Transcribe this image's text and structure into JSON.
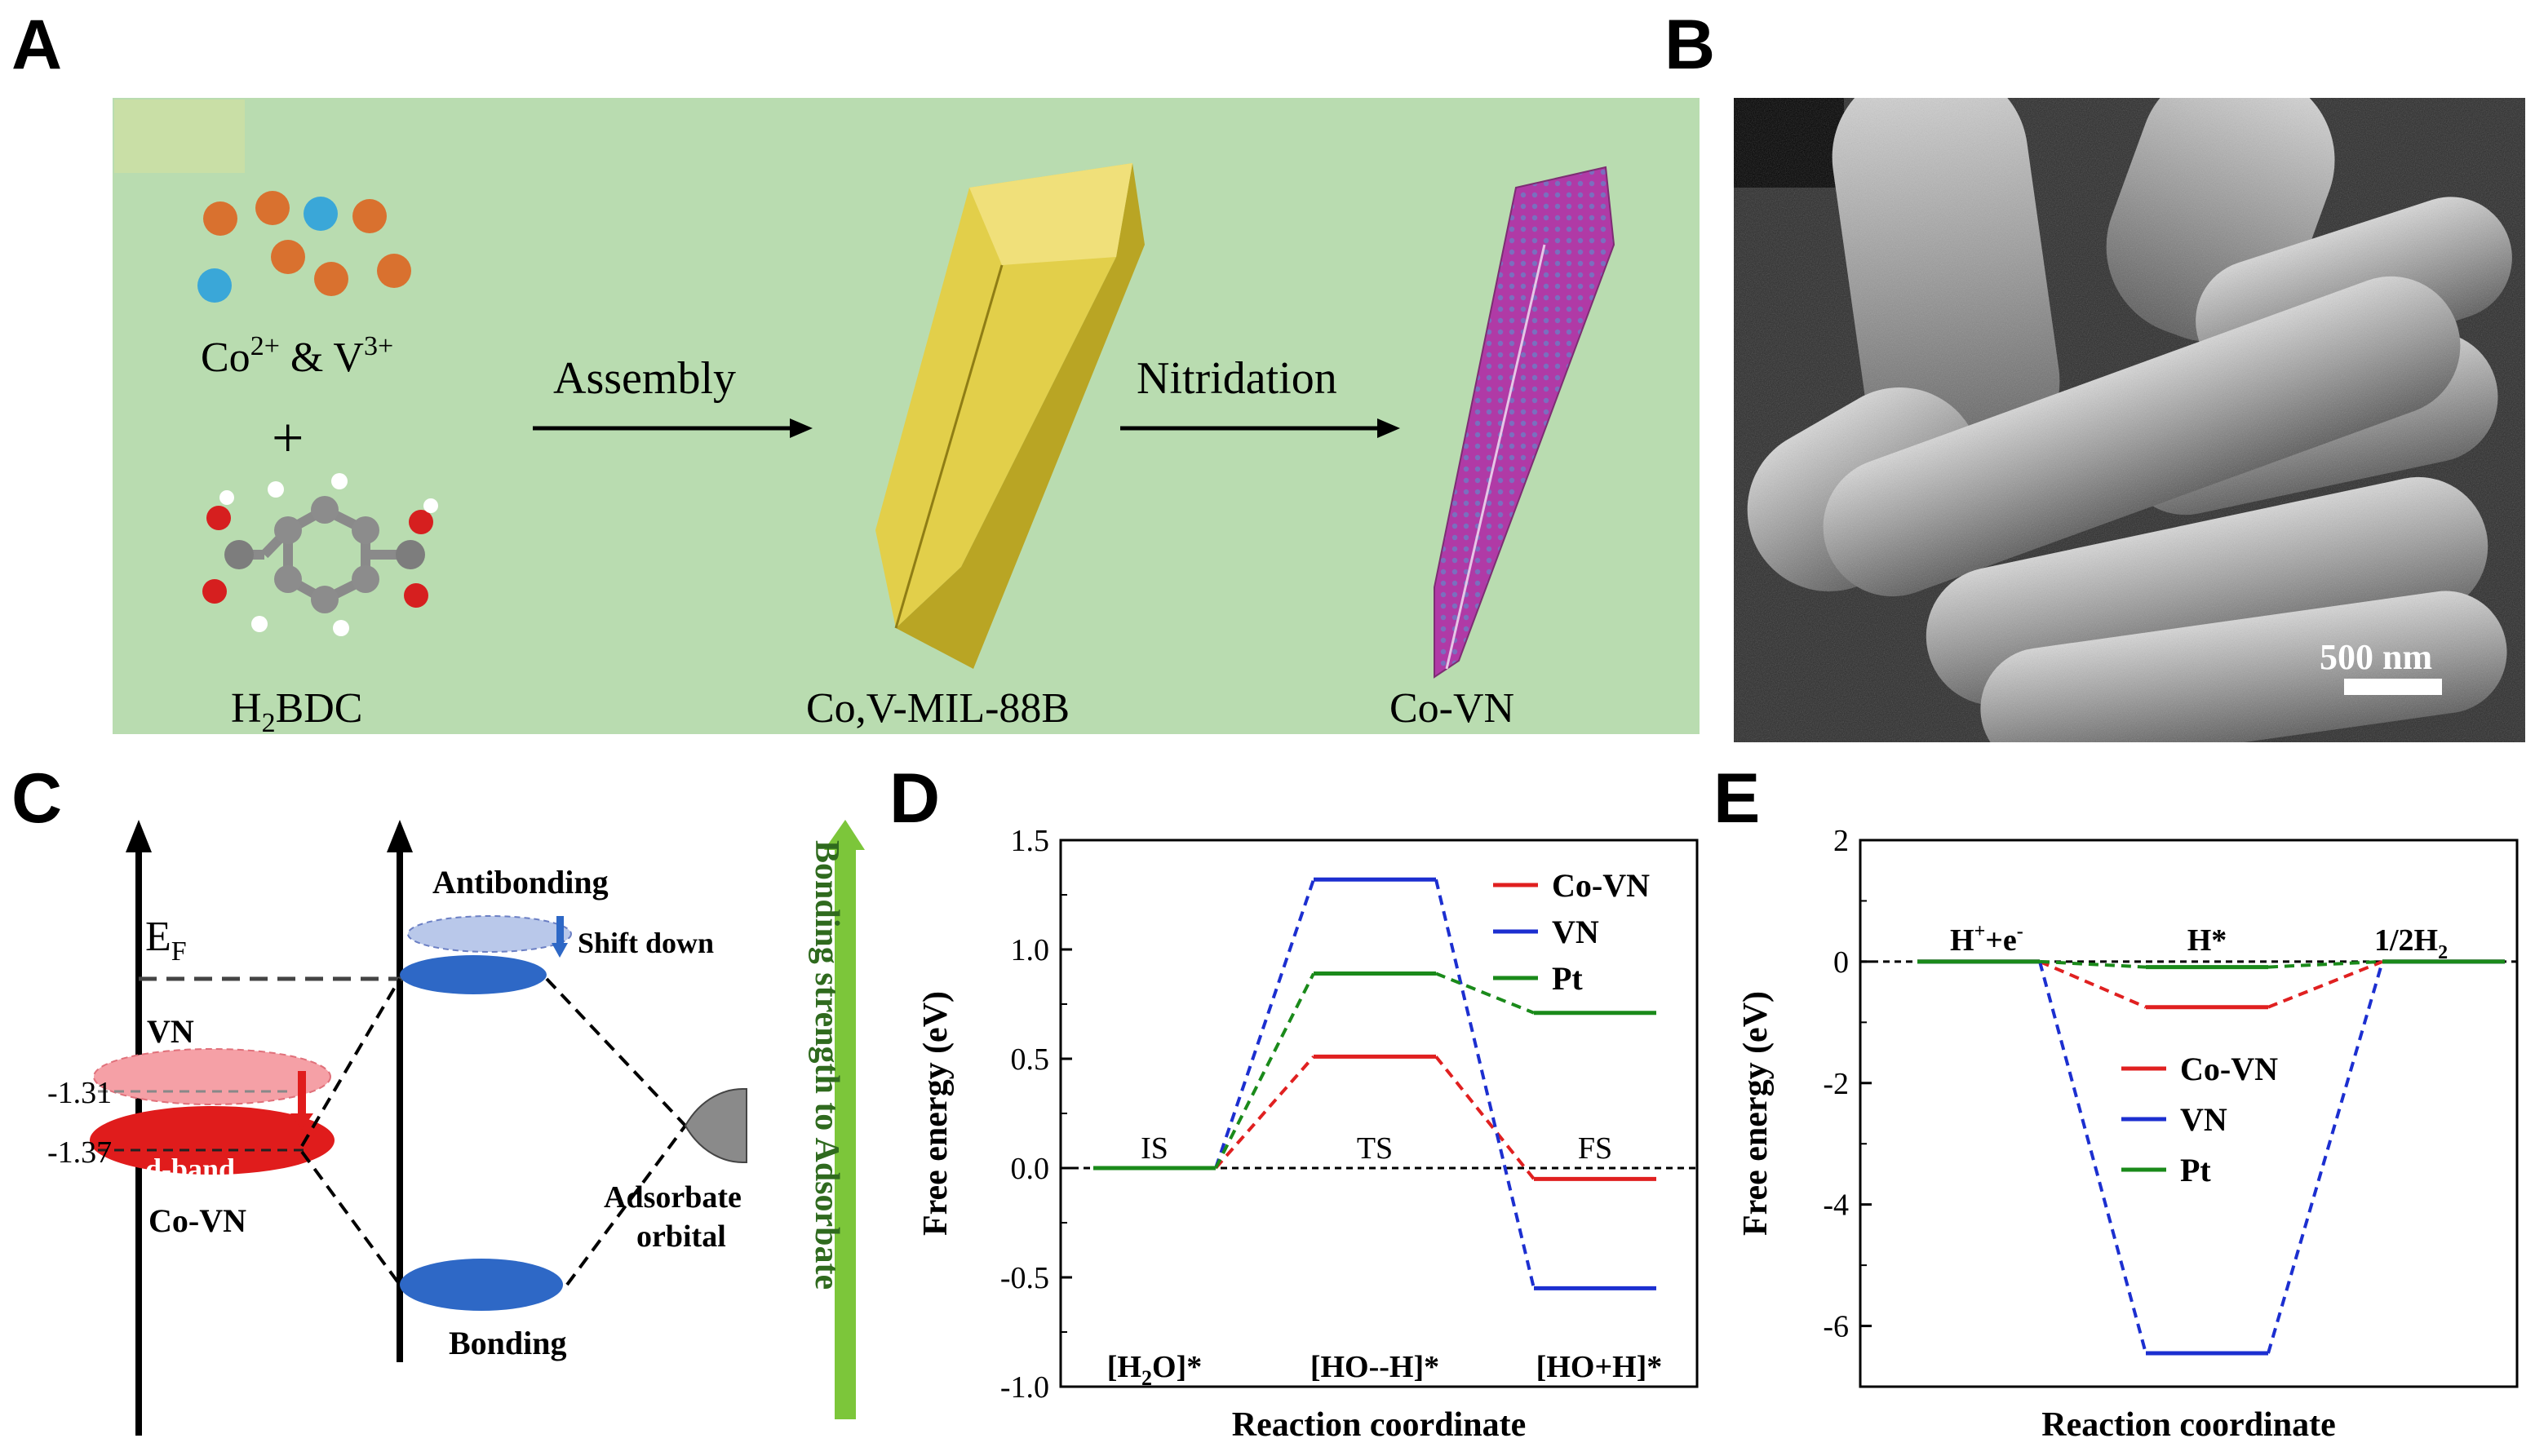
{
  "panels": {
    "a": {
      "letter": "A",
      "ions_label_base": "Co",
      "ions_label_sup1": "2+",
      "ions_label_mid": " & V",
      "ions_label_sup2": "3+",
      "plus": "+",
      "linker_base": "H",
      "linker_sub": "2",
      "linker_rest": "BDC",
      "step1": "Assembly",
      "step2": "Nitridation",
      "intermediate": "Co,V-MIL-88B",
      "product": "Co-VN",
      "colors": {
        "background": "#b9dcb0",
        "co_ion": "#d9712f",
        "v_ion": "#3aa7d8",
        "mof": "#d8c43b",
        "nitride": "#b03aa6"
      }
    },
    "b": {
      "letter": "B",
      "scale_bar": "500 nm"
    },
    "c": {
      "letter": "C",
      "ef_base": "E",
      "ef_sub": "F",
      "vn_label": "VN",
      "val1": "-1.31",
      "val2": "-1.37",
      "dband": "d-band",
      "covn_label": "Co-VN",
      "antibonding": "Antibonding",
      "shift_down": "Shift down",
      "bonding": "Bonding",
      "adsorbate1": "Adsorbate",
      "adsorbate2": "orbital",
      "strength": "Bonding strength to Adsorbate"
    },
    "d": {
      "letter": "D",
      "ylabel": "Free energy (eV)",
      "xlabel": "Reaction coordinate",
      "yticks": [
        "1.5",
        "1.0",
        "0.5",
        "0.0",
        "-0.5",
        "-1.0"
      ],
      "state_top": [
        "IS",
        "TS",
        "FS"
      ],
      "state_bottom_1": [
        "[H",
        "2",
        "O]*"
      ],
      "state_bottom_2": "[HO--H]*",
      "state_bottom_3": "[HO+H]*",
      "legend": [
        "Co-VN",
        "VN",
        "Pt"
      ]
    },
    "e": {
      "letter": "E",
      "ylabel": "Free energy (eV)",
      "xlabel": "Reaction coordinate",
      "yticks": [
        "2",
        "0",
        "-2",
        "-4",
        "-6"
      ],
      "state1": [
        "H",
        "+",
        "+e",
        "-"
      ],
      "state2": "H*",
      "state3": [
        "1/2H",
        "2"
      ],
      "legend": [
        "Co-VN",
        "VN",
        "Pt"
      ]
    }
  },
  "chart_data": [
    {
      "type": "line",
      "panel": "D",
      "xlabel": "Reaction coordinate",
      "ylabel": "Free energy (eV)",
      "ylim": [
        -1.0,
        1.5
      ],
      "categories": [
        "IS",
        "TS",
        "FS"
      ],
      "series": [
        {
          "name": "Co-VN",
          "color": "#e02020",
          "values": [
            0.0,
            0.51,
            -0.05
          ]
        },
        {
          "name": "VN",
          "color": "#1c2fd0",
          "values": [
            0.0,
            1.32,
            -0.55
          ]
        },
        {
          "name": "Pt",
          "color": "#1a8a1a",
          "values": [
            0.0,
            0.89,
            0.71
          ]
        }
      ]
    },
    {
      "type": "line",
      "panel": "E",
      "xlabel": "Reaction coordinate",
      "ylabel": "Free energy (eV)",
      "ylim": [
        -7,
        2
      ],
      "categories": [
        "H++e-",
        "H*",
        "1/2H2"
      ],
      "series": [
        {
          "name": "Co-VN",
          "color": "#e02020",
          "values": [
            0.0,
            -0.75,
            0.0
          ]
        },
        {
          "name": "VN",
          "color": "#1c2fd0",
          "values": [
            0.0,
            -6.45,
            0.0
          ]
        },
        {
          "name": "Pt",
          "color": "#1a8a1a",
          "values": [
            0.0,
            -0.09,
            0.0
          ]
        }
      ]
    }
  ]
}
